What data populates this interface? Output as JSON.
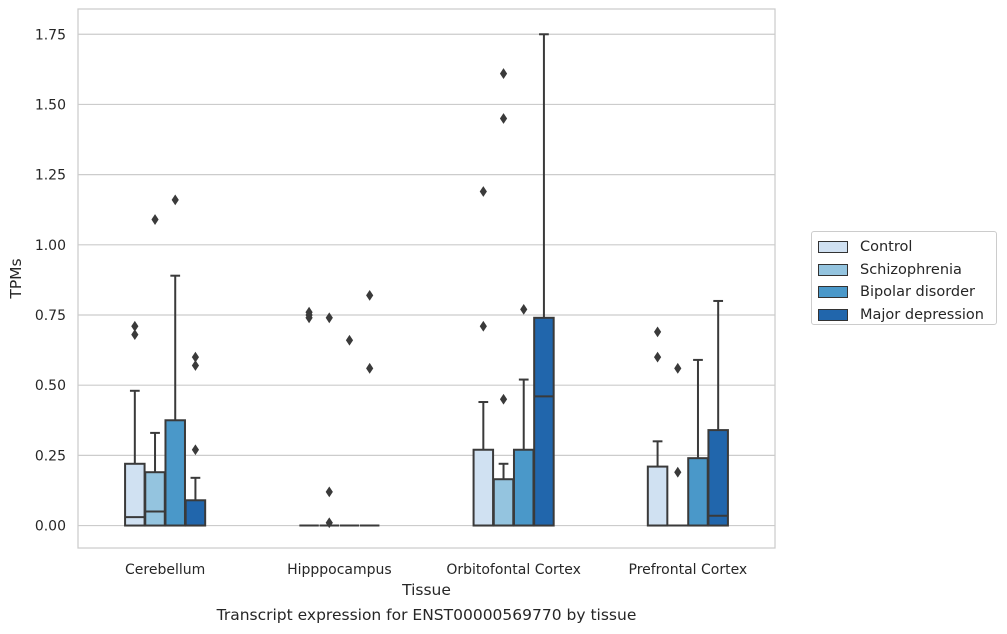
{
  "caption": "Transcript expression for ENST00000569770 by tissue",
  "chart_data": {
    "type": "box",
    "xlabel": "Tissue",
    "ylabel": "TPMs",
    "ylim": [
      -0.08,
      1.84
    ],
    "yticks": [
      0.0,
      0.25,
      0.5,
      0.75,
      1.0,
      1.25,
      1.5,
      1.75
    ],
    "ytick_labels": [
      "0.00",
      "0.25",
      "0.50",
      "0.75",
      "1.00",
      "1.25",
      "1.50",
      "1.75"
    ],
    "grid": "horizontal",
    "legend_position": "right",
    "categories": [
      "Cerebellum",
      "Hipppocampus",
      "Orbitofontal Cortex",
      "Prefrontal Cortex"
    ],
    "series": [
      {
        "name": "Control",
        "color": "#d0e1f2",
        "boxes": [
          {
            "q1": 0.0,
            "median": 0.03,
            "q3": 0.22,
            "whisker_low": 0.0,
            "whisker_high": 0.48,
            "outliers": [
              0.68,
              0.71
            ]
          },
          {
            "q1": 0.0,
            "median": 0.0,
            "q3": 0.0,
            "whisker_low": 0.0,
            "whisker_high": 0.0,
            "outliers": [
              0.74,
              0.75,
              0.76
            ]
          },
          {
            "q1": 0.0,
            "median": 0.0,
            "q3": 0.27,
            "whisker_low": 0.0,
            "whisker_high": 0.44,
            "outliers": [
              0.71,
              1.19
            ]
          },
          {
            "q1": 0.0,
            "median": 0.0,
            "q3": 0.21,
            "whisker_low": 0.0,
            "whisker_high": 0.3,
            "outliers": [
              0.6,
              0.69
            ]
          }
        ]
      },
      {
        "name": "Schizophrenia",
        "color": "#94c4df",
        "boxes": [
          {
            "q1": 0.0,
            "median": 0.05,
            "q3": 0.19,
            "whisker_low": 0.0,
            "whisker_high": 0.33,
            "outliers": [
              1.09
            ]
          },
          {
            "q1": 0.0,
            "median": 0.0,
            "q3": 0.0,
            "whisker_low": 0.0,
            "whisker_high": 0.0,
            "outliers": [
              0.01,
              0.12,
              0.74
            ]
          },
          {
            "q1": 0.0,
            "median": 0.0,
            "q3": 0.165,
            "whisker_low": 0.0,
            "whisker_high": 0.22,
            "outliers": [
              0.45,
              1.45,
              1.61
            ]
          },
          {
            "q1": 0.0,
            "median": 0.0,
            "q3": 0.0,
            "whisker_low": 0.0,
            "whisker_high": 0.0,
            "outliers": [
              0.19,
              0.56
            ]
          }
        ]
      },
      {
        "name": "Bipolar disorder",
        "color": "#4a98c9",
        "boxes": [
          {
            "q1": 0.0,
            "median": 0.0,
            "q3": 0.375,
            "whisker_low": 0.0,
            "whisker_high": 0.89,
            "outliers": [
              1.16
            ]
          },
          {
            "q1": 0.0,
            "median": 0.0,
            "q3": 0.0,
            "whisker_low": 0.0,
            "whisker_high": 0.0,
            "outliers": [
              0.66
            ]
          },
          {
            "q1": 0.0,
            "median": 0.0,
            "q3": 0.27,
            "whisker_low": 0.0,
            "whisker_high": 0.52,
            "outliers": [
              0.77
            ]
          },
          {
            "q1": 0.0,
            "median": 0.0,
            "q3": 0.24,
            "whisker_low": 0.0,
            "whisker_high": 0.59,
            "outliers": []
          }
        ]
      },
      {
        "name": "Major depression",
        "color": "#2166ac",
        "boxes": [
          {
            "q1": 0.0,
            "median": 0.0,
            "q3": 0.09,
            "whisker_low": 0.0,
            "whisker_high": 0.17,
            "outliers": [
              0.27,
              0.57,
              0.6
            ]
          },
          {
            "q1": 0.0,
            "median": 0.0,
            "q3": 0.0,
            "whisker_low": 0.0,
            "whisker_high": 0.0,
            "outliers": [
              0.56,
              0.82
            ]
          },
          {
            "q1": 0.0,
            "median": 0.46,
            "q3": 0.74,
            "whisker_low": 0.0,
            "whisker_high": 1.75,
            "outliers": []
          },
          {
            "q1": 0.0,
            "median": 0.035,
            "q3": 0.34,
            "whisker_low": 0.0,
            "whisker_high": 0.8,
            "outliers": []
          }
        ]
      }
    ]
  }
}
